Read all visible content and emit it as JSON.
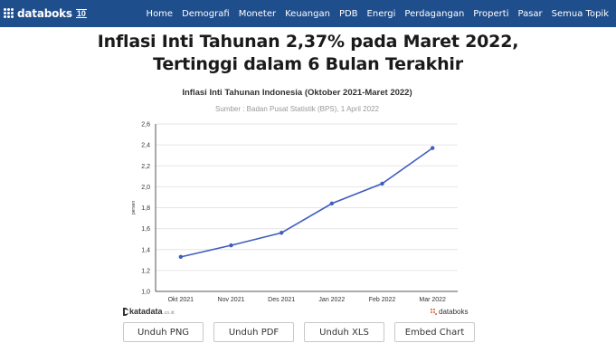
{
  "header": {
    "brand": "databoks",
    "brand_badge": "10",
    "nav_items": [
      "Home",
      "Demografi",
      "Moneter",
      "Keuangan",
      "PDB",
      "Energi",
      "Perdagangan",
      "Properti",
      "Pasar",
      "Semua Topik"
    ]
  },
  "article": {
    "headline": "Inflasi Inti Tahunan 2,37% pada Maret 2022, Tertinggi dalam 6 Bulan Terakhir"
  },
  "chart_data": {
    "type": "line",
    "title": "Inflasi Inti Tahunan Indonesia (Oktober 2021-Maret 2022)",
    "subtitle": "Sumber : Badan Pusat Statistik (BPS), 1 April 2022",
    "xlabel": "",
    "ylabel": "persen",
    "categories": [
      "Okt 2021",
      "Nov 2021",
      "Des 2021",
      "Jan 2022",
      "Feb 2022",
      "Mar 2022"
    ],
    "series": [
      {
        "values": [
          1.33,
          1.44,
          1.56,
          1.84,
          2.03,
          2.37
        ]
      }
    ],
    "ylim": [
      1.0,
      2.6
    ],
    "yticks": [
      "1,0",
      "1,2",
      "1,4",
      "1,6",
      "1,8",
      "2,0",
      "2,2",
      "2,4",
      "2,6"
    ],
    "grid": true,
    "legend": "none",
    "color": "#3f5dbf"
  },
  "footer": {
    "left_brand": "katadata",
    "left_brand_suffix": ".co.id",
    "right_brand": "databoks"
  },
  "buttons": {
    "png": "Unduh PNG",
    "pdf": "Unduh PDF",
    "xls": "Unduh XLS",
    "embed": "Embed Chart"
  }
}
